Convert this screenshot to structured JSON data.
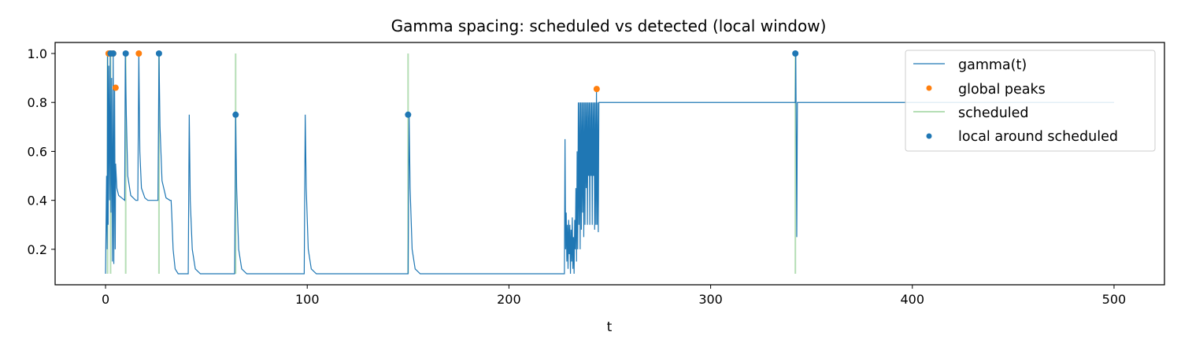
{
  "chart_data": {
    "type": "line",
    "title": "Gamma spacing: scheduled vs detected (local window)",
    "xlabel": "t",
    "ylabel": "",
    "xlim": [
      -25,
      525
    ],
    "ylim": [
      0.055,
      1.045
    ],
    "xticks": [
      0,
      100,
      200,
      300,
      400,
      500
    ],
    "yticks": [
      0.2,
      0.4,
      0.6,
      0.8,
      1.0
    ],
    "xtick_labels": [
      "0",
      "100",
      "200",
      "300",
      "400",
      "500"
    ],
    "ytick_labels": [
      "0.2",
      "0.4",
      "0.6",
      "0.8",
      "1.0"
    ],
    "grid": false,
    "legend_position": "upper right",
    "legend": [
      "gamma(t)",
      "global peaks",
      "scheduled",
      "local around scheduled"
    ],
    "colors": {
      "gamma": "#1f77b4",
      "global_peaks": "#ff7f0e",
      "scheduled": "#2ca02c",
      "local": "#1f77b4"
    },
    "series": [
      {
        "name": "gamma(t)",
        "kind": "line",
        "points": [
          [
            0,
            0.1
          ],
          [
            0.5,
            0.5
          ],
          [
            0.8,
            0.2
          ],
          [
            1,
            1.0
          ],
          [
            1.3,
            0.3
          ],
          [
            1.6,
            0.95
          ],
          [
            2,
            0.4
          ],
          [
            2.3,
            1.0
          ],
          [
            2.7,
            0.35
          ],
          [
            3,
            0.9
          ],
          [
            3.4,
            0.15
          ],
          [
            3.8,
            1.0
          ],
          [
            4.1,
            0.14
          ],
          [
            4.5,
            0.85
          ],
          [
            4.8,
            0.2
          ],
          [
            5,
            0.55
          ],
          [
            5.6,
            0.45
          ],
          [
            6.5,
            0.42
          ],
          [
            8,
            0.41
          ],
          [
            9.5,
            0.4
          ],
          [
            9.8,
            1.0
          ],
          [
            10.3,
            0.75
          ],
          [
            11,
            0.5
          ],
          [
            12.5,
            0.42
          ],
          [
            15,
            0.4
          ],
          [
            16,
            0.4
          ],
          [
            16.5,
            1.0
          ],
          [
            17,
            0.6
          ],
          [
            17.8,
            0.45
          ],
          [
            19.5,
            0.41
          ],
          [
            21,
            0.4
          ],
          [
            26,
            0.4
          ],
          [
            26.5,
            1.0
          ],
          [
            27,
            0.7
          ],
          [
            28,
            0.48
          ],
          [
            30,
            0.41
          ],
          [
            32,
            0.4
          ],
          [
            31.5,
            0.4
          ],
          [
            32.5,
            0.4
          ],
          [
            32.8,
            0.35
          ],
          [
            33.5,
            0.2
          ],
          [
            34.5,
            0.12
          ],
          [
            36,
            0.1
          ],
          [
            41,
            0.1
          ],
          [
            41.5,
            0.75
          ],
          [
            42,
            0.4
          ],
          [
            43,
            0.2
          ],
          [
            44.5,
            0.12
          ],
          [
            47,
            0.1
          ],
          [
            64,
            0.1
          ],
          [
            64.5,
            0.75
          ],
          [
            65,
            0.45
          ],
          [
            66,
            0.2
          ],
          [
            67.5,
            0.12
          ],
          [
            70,
            0.1
          ],
          [
            98.5,
            0.1
          ],
          [
            99,
            0.75
          ],
          [
            99.5,
            0.45
          ],
          [
            100.5,
            0.2
          ],
          [
            102,
            0.12
          ],
          [
            104.5,
            0.1
          ],
          [
            150,
            0.1
          ],
          [
            150.5,
            0.75
          ],
          [
            151,
            0.45
          ],
          [
            152,
            0.2
          ],
          [
            153.5,
            0.12
          ],
          [
            156,
            0.1
          ],
          [
            227.5,
            0.1
          ],
          [
            227.8,
            0.65
          ],
          [
            228.1,
            0.2
          ],
          [
            228.4,
            0.35
          ],
          [
            228.7,
            0.15
          ],
          [
            229,
            0.3
          ],
          [
            229.3,
            0.12
          ],
          [
            229.6,
            0.32
          ],
          [
            229.9,
            0.18
          ],
          [
            230.2,
            0.3
          ],
          [
            230.5,
            0.1
          ],
          [
            230.8,
            0.28
          ],
          [
            231.1,
            0.15
          ],
          [
            231.4,
            0.33
          ],
          [
            231.7,
            0.12
          ],
          [
            232,
            0.25
          ],
          [
            232.3,
            0.1
          ],
          [
            232.6,
            0.32
          ],
          [
            232.9,
            0.2
          ],
          [
            233.2,
            0.45
          ],
          [
            233.5,
            0.15
          ],
          [
            233.8,
            0.6
          ],
          [
            234.1,
            0.2
          ],
          [
            234.4,
            0.8
          ],
          [
            234.7,
            0.3
          ],
          [
            235,
            0.8
          ],
          [
            235.3,
            0.2
          ],
          [
            235.6,
            0.8
          ],
          [
            235.9,
            0.28
          ],
          [
            236.2,
            0.8
          ],
          [
            236.5,
            0.35
          ],
          [
            236.8,
            0.8
          ],
          [
            237.1,
            0.25
          ],
          [
            237.4,
            0.8
          ],
          [
            237.7,
            0.3
          ],
          [
            238,
            0.8
          ],
          [
            238.3,
            0.45
          ],
          [
            238.6,
            0.8
          ],
          [
            238.9,
            0.3
          ],
          [
            239.2,
            0.8
          ],
          [
            239.5,
            0.5
          ],
          [
            239.8,
            0.8
          ],
          [
            240.1,
            0.3
          ],
          [
            240.4,
            0.8
          ],
          [
            240.7,
            0.5
          ],
          [
            241,
            0.8
          ],
          [
            241.3,
            0.3
          ],
          [
            241.6,
            0.8
          ],
          [
            241.9,
            0.5
          ],
          [
            242.2,
            0.8
          ],
          [
            242.5,
            0.28
          ],
          [
            242.8,
            0.8
          ],
          [
            243.1,
            0.3
          ],
          [
            243.4,
            0.85
          ],
          [
            243.7,
            0.3
          ],
          [
            244,
            0.8
          ],
          [
            244.3,
            0.27
          ],
          [
            244.6,
            0.8
          ],
          [
            245,
            0.8
          ],
          [
            250,
            0.8
          ],
          [
            342,
            0.8
          ],
          [
            342.2,
            1.0
          ],
          [
            342.5,
            0.6
          ],
          [
            342.7,
            0.25
          ],
          [
            343,
            0.8
          ],
          [
            350,
            0.8
          ],
          [
            500,
            0.8
          ]
        ]
      },
      {
        "name": "global peaks",
        "kind": "scatter",
        "points": [
          [
            1.5,
            1.0
          ],
          [
            2.5,
            1.0
          ],
          [
            3.8,
            1.0
          ],
          [
            5,
            0.86
          ],
          [
            16.5,
            1.0
          ],
          [
            243.5,
            0.855
          ]
        ]
      },
      {
        "name": "scheduled",
        "kind": "vlines",
        "points": [
          [
            1,
            0.1,
            1.0
          ],
          [
            2.5,
            0.1,
            1.0
          ],
          [
            10,
            0.1,
            1.0
          ],
          [
            26.5,
            0.1,
            1.0
          ],
          [
            64.5,
            0.1,
            1.0
          ],
          [
            150,
            0.1,
            1.0
          ],
          [
            342,
            0.1,
            1.0
          ]
        ]
      },
      {
        "name": "local around scheduled",
        "kind": "scatter",
        "points": [
          [
            2.5,
            1.0
          ],
          [
            3.8,
            1.0
          ],
          [
            10,
            1.0
          ],
          [
            26.5,
            1.0
          ],
          [
            64.5,
            0.75
          ],
          [
            150,
            0.75
          ],
          [
            342,
            1.0
          ]
        ]
      }
    ]
  }
}
